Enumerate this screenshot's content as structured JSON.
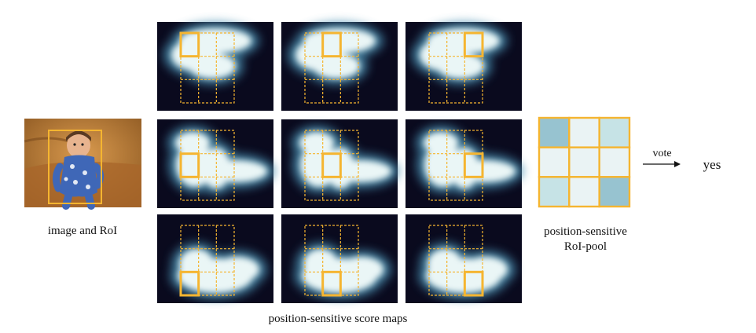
{
  "labels": {
    "image": "image and RoI",
    "score_maps": "position-sensitive score maps",
    "pool_line1": "position-sensitive",
    "pool_line2": "RoI-pool",
    "vote": "vote",
    "result": "yes"
  },
  "grid": {
    "rows": 3,
    "cols": 3
  },
  "pool_cells": [
    [
      "high",
      "low",
      "medium"
    ],
    [
      "low",
      "low",
      "low"
    ],
    [
      "medium",
      "low",
      "high"
    ]
  ],
  "colors": {
    "accent": "#f5b530",
    "map_background": "#0a0a1e",
    "map_foreground": "#eaf6f6",
    "pool_high": "#97c3d0",
    "pool_medium": "#c6e3e6",
    "pool_low": "#eaf3f4",
    "photo_background": "#b3732f",
    "baby_suit": "#3f67b7"
  }
}
